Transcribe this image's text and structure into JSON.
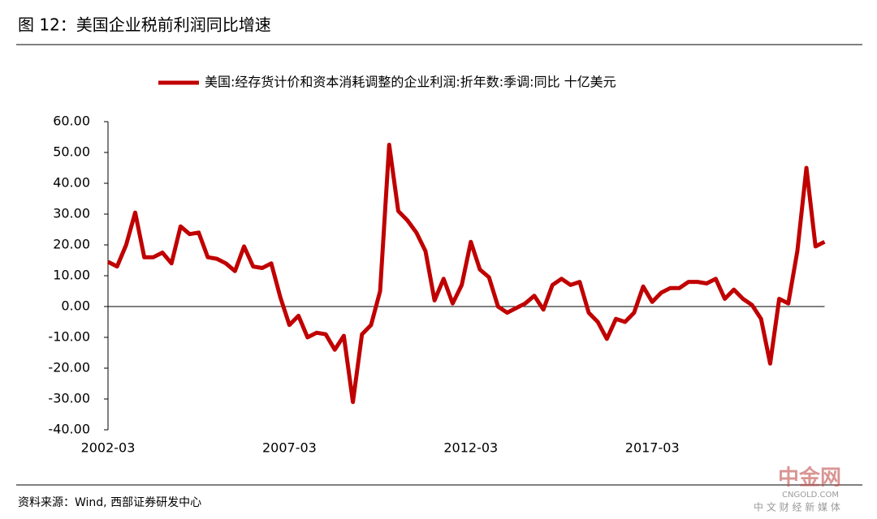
{
  "chart_data": {
    "type": "line",
    "title": "图 12：美国企业税前利润同比增速",
    "source": "资料来源：Wind, 西部证券研发中心",
    "watermark": "中金网",
    "watermark_sub": "CNGOLD.COM",
    "watermark_tag": "中 文 财 经 新 媒 体",
    "categories": [
      "2002-03",
      null,
      null,
      null,
      null,
      null,
      null,
      null,
      null,
      null,
      null,
      null,
      null,
      null,
      null,
      null,
      null,
      null,
      null,
      null,
      "2007-03",
      null,
      null,
      null,
      null,
      null,
      null,
      null,
      null,
      null,
      null,
      null,
      null,
      null,
      null,
      null,
      null,
      null,
      null,
      null,
      "2012-03",
      null,
      null,
      null,
      null,
      null,
      null,
      null,
      null,
      null,
      null,
      null,
      null,
      null,
      null,
      null,
      null,
      null,
      null,
      null,
      "2017-03",
      null,
      null,
      null,
      null,
      null,
      null,
      null,
      null,
      null,
      null,
      null,
      null,
      null,
      null,
      null,
      null,
      null,
      null,
      null
    ],
    "series": [
      {
        "name": "美国:经存货计价和资本消耗调整的企业利润:折年数:季调:同比 十亿美元",
        "color": "#c00000",
        "values": [
          14.5,
          13,
          20,
          30.5,
          16,
          16,
          17.5,
          14,
          26,
          23.5,
          24,
          16,
          15.5,
          14,
          11.5,
          19.5,
          13,
          12.5,
          14,
          3,
          -6,
          -3,
          -10,
          -8.5,
          -9,
          -14,
          -9.5,
          -31,
          -9,
          -6,
          5,
          52.5,
          31,
          28,
          24,
          18,
          2,
          9,
          1,
          7,
          21,
          12,
          9.5,
          0,
          -2,
          -0.5,
          1,
          3.5,
          -1,
          7,
          9,
          7,
          8,
          -2,
          -5,
          -10.5,
          -4,
          -5,
          -2,
          6.5,
          1.5,
          4.5,
          6,
          6,
          8,
          8,
          7.5,
          9,
          2.5,
          5.5,
          2.5,
          0.5,
          -4,
          -18.5,
          2.5,
          1,
          18,
          45,
          19.5,
          21
        ]
      }
    ],
    "ylim": [
      -40,
      60
    ],
    "yticks": [
      {
        "value": -40,
        "label": "-40.00"
      },
      {
        "value": -30,
        "label": "-30.00"
      },
      {
        "value": -20,
        "label": "-20.00"
      },
      {
        "value": -10,
        "label": "-10.00"
      },
      {
        "value": 0,
        "label": "0.00"
      },
      {
        "value": 10,
        "label": "10.00"
      },
      {
        "value": 20,
        "label": "20.00"
      },
      {
        "value": 30,
        "label": "30.00"
      },
      {
        "value": 40,
        "label": "40.00"
      },
      {
        "value": 50,
        "label": "50.00"
      },
      {
        "value": 60,
        "label": "60.00"
      }
    ],
    "grid": false
  }
}
